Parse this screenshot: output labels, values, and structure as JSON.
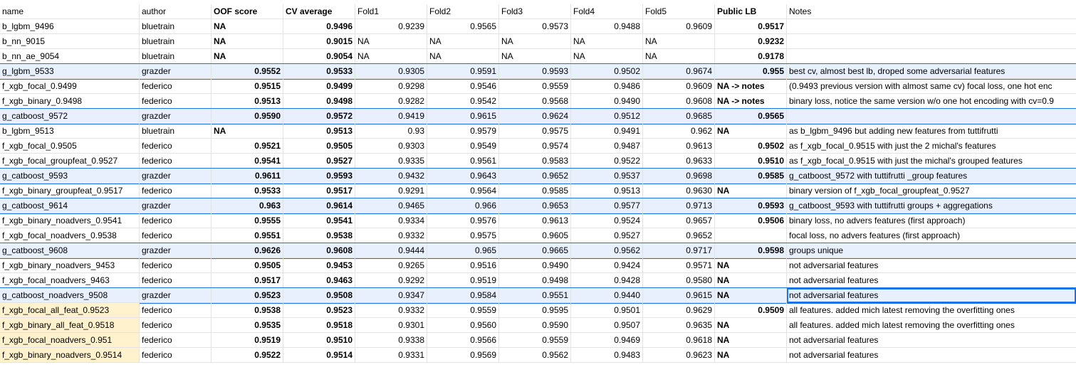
{
  "columns": [
    "name",
    "author",
    "OOF score",
    "CV average",
    "Fold1",
    "Fold2",
    "Fold3",
    "Fold4",
    "Fold5",
    "Public LB",
    "Notes"
  ],
  "rows": [
    {
      "highlight": false,
      "yellow": false,
      "cells": [
        "b_lgbm_9496",
        "bluetrain",
        "NA",
        "0.9496",
        "0.9239",
        "0.9565",
        "0.9573",
        "0.9488",
        "0.9609",
        "0.9517",
        ""
      ]
    },
    {
      "highlight": false,
      "yellow": false,
      "cells": [
        "b_nn_9015",
        "bluetrain",
        "NA",
        "0.9015",
        "NA",
        "NA",
        "NA",
        "NA",
        "NA",
        "0.9232",
        ""
      ]
    },
    {
      "highlight": false,
      "yellow": false,
      "cells": [
        "b_nn_ae_9054",
        "bluetrain",
        "NA",
        "0.9054",
        "NA",
        "NA",
        "NA",
        "NA",
        "NA",
        "0.9178",
        ""
      ]
    },
    {
      "highlight": true,
      "yellow": false,
      "cells": [
        "g_lgbm_9533",
        "grazder",
        "0.9552",
        "0.9533",
        "0.9305",
        "0.9591",
        "0.9593",
        "0.9502",
        "0.9674",
        "0.955",
        "best cv, almost best lb, droped some adversarial features"
      ]
    },
    {
      "highlight": false,
      "yellow": false,
      "cells": [
        "f_xgb_focal_0.9499",
        "federico",
        "0.9515",
        "0.9499",
        "0.9298",
        "0.9546",
        "0.9559",
        "0.9486",
        "0.9609",
        "NA -> notes",
        "(0.9493 previous version with almost same cv) focal loss, one hot enc"
      ]
    },
    {
      "highlight": false,
      "yellow": false,
      "cells": [
        "f_xgb_binary_0.9498",
        "federico",
        "0.9513",
        "0.9498",
        "0.9282",
        "0.9542",
        "0.9568",
        "0.9490",
        "0.9608",
        "NA -> notes",
        "binary loss, notice the same version w/o one hot encoding with cv=0.9"
      ]
    },
    {
      "highlight": true,
      "yellow": false,
      "cells": [
        "g_catboost_9572",
        "grazder",
        "0.9590",
        "0.9572",
        "0.9419",
        "0.9615",
        "0.9624",
        "0.9512",
        "0.9685",
        "0.9565",
        ""
      ]
    },
    {
      "highlight": false,
      "yellow": false,
      "cells": [
        "b_lgbm_9513",
        "bluetrain",
        "NA",
        "0.9513",
        "0.93",
        "0.9579",
        "0.9575",
        "0.9491",
        "0.962",
        "NA",
        "as b_lgbm_9496 but adding new features from tuttifrutti"
      ]
    },
    {
      "highlight": false,
      "yellow": false,
      "cells": [
        "f_xgb_focal_0.9505",
        "federico",
        "0.9521",
        "0.9505",
        "0.9303",
        "0.9549",
        "0.9574",
        "0.9487",
        "0.9613",
        "0.9502",
        "as f_xgb_focal_0.9515 with just the 2 michal's features"
      ]
    },
    {
      "highlight": false,
      "yellow": false,
      "cells": [
        "f_xgb_focal_groupfeat_0.9527",
        "federico",
        "0.9541",
        "0.9527",
        "0.9335",
        "0.9561",
        "0.9583",
        "0.9522",
        "0.9633",
        "0.9510",
        "as f_xgb_focal_0.9515 with just the michal's grouped features"
      ]
    },
    {
      "highlight": true,
      "yellow": false,
      "cells": [
        "g_catboost_9593",
        "grazder",
        "0.9611",
        "0.9593",
        "0.9432",
        "0.9643",
        "0.9652",
        "0.9537",
        "0.9698",
        "0.9585",
        "g_catboost_9572 with tuttifrutti _group features"
      ]
    },
    {
      "highlight": false,
      "yellow": false,
      "cells": [
        "f_xgb_binary_groupfeat_0.9517",
        "federico",
        "0.9533",
        "0.9517",
        "0.9291",
        "0.9564",
        "0.9585",
        "0.9513",
        "0.9630",
        "NA",
        "binary version of f_xgb_focal_groupfeat_0.9527"
      ]
    },
    {
      "highlight": true,
      "yellow": false,
      "cells": [
        "g_catboost_9614",
        "grazder",
        "0.963",
        "0.9614",
        "0.9465",
        "0.966",
        "0.9653",
        "0.9577",
        "0.9713",
        "0.9593",
        "g_catboost_9593 with tuttifrutti groups + aggregations"
      ]
    },
    {
      "highlight": false,
      "yellow": false,
      "cells": [
        "f_xgb_binary_noadvers_0.9541",
        "federico",
        "0.9555",
        "0.9541",
        "0.9334",
        "0.9576",
        "0.9613",
        "0.9524",
        "0.9657",
        "0.9506",
        "binary loss, no advers features (first approach)"
      ]
    },
    {
      "highlight": false,
      "yellow": false,
      "cells": [
        "f_xgb_focal_noadvers_0.9538",
        "federico",
        "0.9551",
        "0.9538",
        "0.9332",
        "0.9575",
        "0.9605",
        "0.9527",
        "0.9652",
        "",
        "focal loss, no advers features (first approach)"
      ]
    },
    {
      "highlight": true,
      "yellow": false,
      "cells": [
        "g_catboost_9608",
        "grazder",
        "0.9626",
        "0.9608",
        "0.9444",
        "0.965",
        "0.9665",
        "0.9562",
        "0.9717",
        "0.9598",
        "groups unique"
      ]
    },
    {
      "highlight": false,
      "yellow": false,
      "cells": [
        "f_xgb_binary_noadvers_9453",
        "federico",
        "0.9505",
        "0.9453",
        "0.9265",
        "0.9516",
        "0.9490",
        "0.9424",
        "0.9571",
        "NA",
        "not adversarial features"
      ]
    },
    {
      "highlight": false,
      "yellow": false,
      "cells": [
        "f_xgb_focal_noadvers_9463",
        "federico",
        "0.9517",
        "0.9463",
        "0.9292",
        "0.9519",
        "0.9498",
        "0.9428",
        "0.9580",
        "NA",
        "not adversarial features"
      ]
    },
    {
      "highlight": true,
      "yellow": false,
      "cells": [
        "g_catboost_noadvers_9508",
        "grazder",
        "0.9523",
        "0.9508",
        "0.9347",
        "0.9584",
        "0.9551",
        "0.9440",
        "0.9615",
        "NA",
        "not adversarial features"
      ]
    },
    {
      "highlight": false,
      "yellow": true,
      "cells": [
        "f_xgb_focal_all_feat_0.9523",
        "federico",
        "0.9538",
        "0.9523",
        "0.9332",
        "0.9559",
        "0.9595",
        "0.9501",
        "0.9629",
        "0.9509",
        "all features. added mich latest removing the overfitting ones"
      ]
    },
    {
      "highlight": false,
      "yellow": true,
      "cells": [
        "f_xgb_binary_all_feat_0.9518",
        "federico",
        "0.9535",
        "0.9518",
        "0.9301",
        "0.9560",
        "0.9590",
        "0.9507",
        "0.9635",
        "NA",
        "all features. added mich latest removing the overfitting ones"
      ]
    },
    {
      "highlight": false,
      "yellow": true,
      "cells": [
        "f_xgb_focal_noadvers_0.951",
        "federico",
        "0.9519",
        "0.9510",
        "0.9338",
        "0.9566",
        "0.9559",
        "0.9469",
        "0.9618",
        "NA",
        "not adversarial features"
      ]
    },
    {
      "highlight": false,
      "yellow": true,
      "cells": [
        "f_xgb_binary_noadvers_0.9514",
        "federico",
        "0.9522",
        "0.9514",
        "0.9331",
        "0.9569",
        "0.9562",
        "0.9483",
        "0.9623",
        "NA",
        "not adversarial features"
      ]
    }
  ],
  "selected_cell": {
    "row": 18,
    "col": 10
  }
}
